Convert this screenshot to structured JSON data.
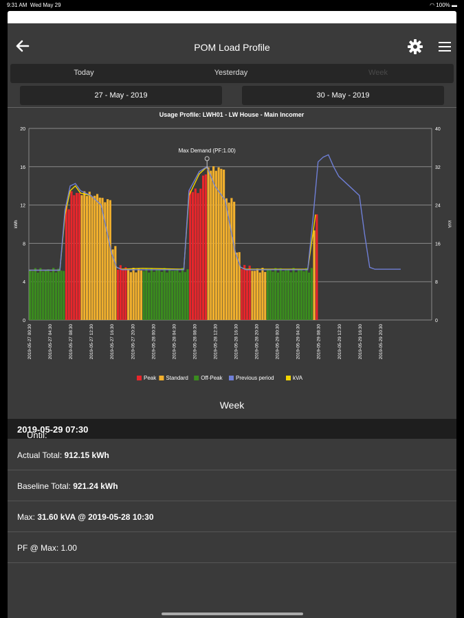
{
  "status": {
    "time": "9:31 AM",
    "date": "Wed May 29",
    "battery": "100%"
  },
  "header": {
    "title": "POM Load Profile"
  },
  "tabs": [
    {
      "label": "Today"
    },
    {
      "label": "Yesterday"
    },
    {
      "label": "Week"
    }
  ],
  "dates": {
    "from": "27 - May - 2019",
    "to": "30 - May - 2019"
  },
  "chart_data": {
    "type": "bar",
    "title": "Usage Profile: LWH01 - LW House - Main Incomer",
    "ylabel": "kWh",
    "y2label": "kVA",
    "ylim": [
      0,
      20
    ],
    "y2lim": [
      0,
      40
    ],
    "yticks": [
      "0",
      "4",
      "8",
      "12",
      "16",
      "20"
    ],
    "y2ticks": [
      "0",
      "8",
      "16",
      "24",
      "32",
      "40"
    ],
    "annotation": "Max Demand (PF:1.00)",
    "xticks": [
      "2019-05-27 00:30",
      "2019-05-27 04:30",
      "2019-05-27 08:30",
      "2019-05-27 12:30",
      "2019-05-27 16:30",
      "2019-05-27 20:30",
      "2019-05-28 00:30",
      "2019-05-28 04:30",
      "2019-05-28 08:30",
      "2019-05-28 12:30",
      "2019-05-28 16:30",
      "2019-05-28 20:30",
      "2019-05-29 00:30",
      "2019-05-29 04:30",
      "2019-05-29 08:30",
      "2019-05-29 12:30",
      "2019-05-29 16:30",
      "2019-05-29 20:30"
    ],
    "legend": [
      {
        "name": "Peak",
        "color": "#e8262b"
      },
      {
        "name": "Standard",
        "color": "#f2b02d"
      },
      {
        "name": "Off-Peak",
        "color": "#3a8c1e"
      },
      {
        "name": "Previous period",
        "color": "#6f7fd6"
      },
      {
        "name": "kVA",
        "color": "#f2d400"
      }
    ],
    "colors": {
      "peak": "#e8262b",
      "standard": "#f2b02d",
      "offpeak": "#3a8c1e",
      "previous": "#6f7fd6",
      "kva": "#f2d400"
    },
    "bars": [
      {
        "hour": 0,
        "value": 5.2,
        "tariff": "offpeak"
      },
      {
        "hour": 6,
        "value": 5.2,
        "tariff": "offpeak"
      },
      {
        "hour": 7,
        "value": 11.8,
        "tariff": "peak"
      },
      {
        "hour": 8,
        "value": 13.2,
        "tariff": "peak"
      },
      {
        "hour": 10,
        "value": 13.2,
        "tariff": "standard"
      },
      {
        "hour": 12,
        "value": 13.0,
        "tariff": "standard"
      },
      {
        "hour": 14,
        "value": 12.5,
        "tariff": "standard"
      },
      {
        "hour": 16,
        "value": 7.5,
        "tariff": "standard"
      },
      {
        "hour": 17,
        "value": 5.5,
        "tariff": "peak"
      },
      {
        "hour": 19,
        "value": 5.2,
        "tariff": "standard"
      },
      {
        "hour": 22,
        "value": 5.2,
        "tariff": "offpeak"
      },
      {
        "hour": 30,
        "value": 5.2,
        "tariff": "offpeak"
      },
      {
        "hour": 31,
        "value": 13.5,
        "tariff": "peak"
      },
      {
        "hour": 33.5,
        "value": 15.2,
        "tariff": "peak"
      },
      {
        "hour": 34.5,
        "value": 15.8,
        "tariff": "standard"
      },
      {
        "hour": 38,
        "value": 12.5,
        "tariff": "standard"
      },
      {
        "hour": 40,
        "value": 7.0,
        "tariff": "standard"
      },
      {
        "hour": 41,
        "value": 5.5,
        "tariff": "peak"
      },
      {
        "hour": 43,
        "value": 5.2,
        "tariff": "standard"
      },
      {
        "hour": 46,
        "value": 5.2,
        "tariff": "offpeak"
      },
      {
        "hour": 54,
        "value": 5.2,
        "tariff": "offpeak"
      },
      {
        "hour": 55,
        "value": 9.5,
        "tariff": "standard"
      },
      {
        "hour": 55.5,
        "value": 11.0,
        "tariff": "peak"
      }
    ],
    "kva_line": [
      [
        0,
        10.4
      ],
      [
        6,
        10.4
      ],
      [
        7,
        22
      ],
      [
        8,
        27
      ],
      [
        9,
        28
      ],
      [
        10,
        26.5
      ],
      [
        12,
        26
      ],
      [
        14,
        24
      ],
      [
        16,
        14
      ],
      [
        17,
        11
      ],
      [
        18,
        10.6
      ],
      [
        22,
        10.8
      ],
      [
        30,
        10.6
      ],
      [
        31,
        26
      ],
      [
        33,
        30.5
      ],
      [
        34.5,
        32
      ],
      [
        36,
        28
      ],
      [
        38,
        25
      ],
      [
        40,
        14
      ],
      [
        41,
        11
      ],
      [
        42,
        10.6
      ],
      [
        46,
        10.6
      ],
      [
        54,
        10.6
      ],
      [
        55,
        18
      ],
      [
        55.5,
        22
      ]
    ],
    "previous_line": [
      [
        0,
        10.4
      ],
      [
        6,
        10.4
      ],
      [
        7,
        23
      ],
      [
        8,
        28
      ],
      [
        9,
        28.5
      ],
      [
        10,
        27
      ],
      [
        12,
        26
      ],
      [
        14,
        24
      ],
      [
        16,
        14
      ],
      [
        17,
        11
      ],
      [
        18,
        10.5
      ],
      [
        22,
        10.5
      ],
      [
        30,
        10.5
      ],
      [
        31,
        27
      ],
      [
        33,
        31
      ],
      [
        34.5,
        32
      ],
      [
        36,
        28
      ],
      [
        38,
        25
      ],
      [
        40,
        14
      ],
      [
        41,
        11
      ],
      [
        42,
        10.5
      ],
      [
        46,
        10.5
      ],
      [
        54,
        10.5
      ],
      [
        55,
        21
      ],
      [
        56,
        33
      ],
      [
        57,
        34
      ],
      [
        58,
        34.5
      ],
      [
        59,
        32
      ],
      [
        60,
        30
      ],
      [
        62,
        28
      ],
      [
        64,
        26
      ],
      [
        65,
        18
      ],
      [
        66,
        11
      ],
      [
        67,
        10.6
      ],
      [
        72,
        10.6
      ]
    ],
    "peak_point": {
      "hour": 34.5,
      "value": 15.8
    }
  },
  "week_title": "Week",
  "summary": {
    "until_label": "Until:",
    "until_value": "2019-05-29 07:30",
    "actual_label": "Actual Total:",
    "actual_value": "912.15 kWh",
    "baseline_label": "Baseline Total:",
    "baseline_value": "921.24 kWh",
    "max_label": "Max:",
    "max_value": "31.60 kVA @ 2019-05-28 10:30",
    "pf_label": "PF @ Max:",
    "pf_value": "1.00"
  }
}
